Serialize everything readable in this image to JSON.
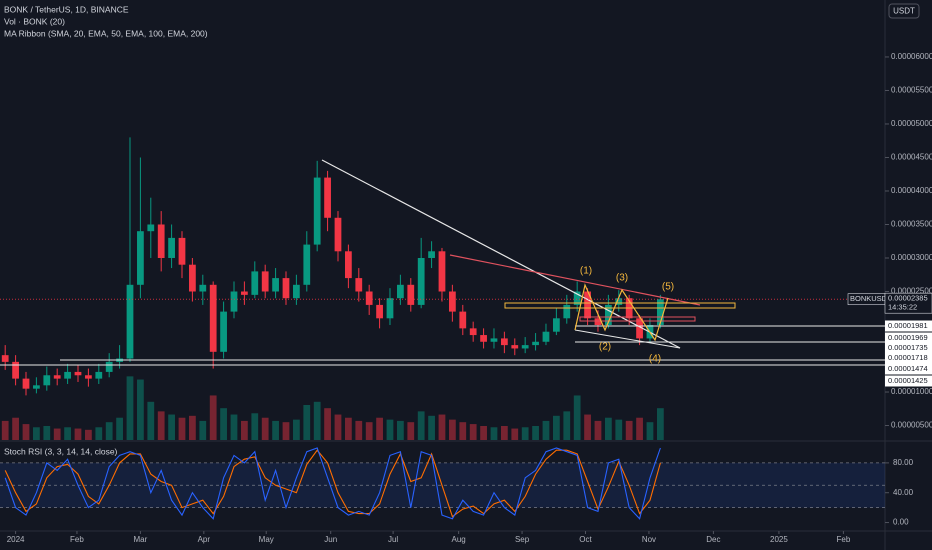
{
  "chart_data": {
    "type": "candlestick",
    "title": "BONK / TetherUS, 1D, BINANCE",
    "indicators": [
      "Vol · BONK (20)",
      "MA Ribbon (SMA, 20, EMA, 50, EMA, 100, EMA, 200)"
    ],
    "currency": "USDT",
    "symbol": "BONKUSDT",
    "last_price": {
      "value": 2.385e-05,
      "label": "0.00002385"
    },
    "countdown": "14:35:22",
    "price_tags": [
      {
        "value": 1.981e-05,
        "label": "0.00001981"
      },
      {
        "value": 1.969e-05,
        "label": "0.00001969"
      },
      {
        "value": 1.735e-05,
        "label": "0.00001735"
      },
      {
        "value": 1.718e-05,
        "label": "0.00001718"
      },
      {
        "value": 1.474e-05,
        "label": "0.00001474"
      },
      {
        "value": 1.425e-05,
        "label": "0.00001425"
      }
    ],
    "waves": [
      "(1)",
      "(2)",
      "(3)",
      "(4)",
      "(5)"
    ],
    "up_color": "#089981",
    "down_color": "#f23645",
    "categories": [
      null,
      null,
      null,
      null,
      null,
      null,
      null,
      null,
      null,
      null,
      null,
      null,
      null,
      null,
      null,
      null,
      null,
      null,
      null,
      null,
      null,
      null,
      null,
      null,
      null,
      null,
      null,
      null,
      null,
      null,
      null,
      null,
      null,
      null,
      null,
      null,
      null,
      null,
      null,
      null,
      null,
      null,
      null,
      null,
      null,
      null,
      null,
      null,
      null,
      null,
      null,
      null,
      null,
      null,
      null,
      null,
      null,
      null,
      null,
      null,
      null,
      null,
      null,
      null
    ],
    "open": [
      1.55e-05,
      1.45e-05,
      1.2e-05,
      1.05e-05,
      1.1e-05,
      1.25e-05,
      1.2e-05,
      1.3e-05,
      1.25e-05,
      1.2e-05,
      1.3e-05,
      1.45e-05,
      1.5e-05,
      2.6e-05,
      3.4e-05,
      3.5e-05,
      3e-05,
      3.3e-05,
      2.9e-05,
      2.5e-05,
      2.6e-05,
      1.6e-05,
      2.2e-05,
      2.5e-05,
      2.45e-05,
      2.8e-05,
      2.5e-05,
      2.7e-05,
      2.4e-05,
      2.6e-05,
      3.2e-05,
      4.2e-05,
      3.6e-05,
      3.1e-05,
      2.7e-05,
      2.5e-05,
      2.3e-05,
      2.1e-05,
      2.4e-05,
      2.6e-05,
      2.3e-05,
      3e-05,
      3.1e-05,
      2.5e-05,
      2.2e-05,
      1.95e-05,
      1.85e-05,
      1.75e-05,
      1.8e-05,
      1.7e-05,
      1.65e-05,
      1.7e-05,
      1.75e-05,
      1.9e-05,
      2.1e-05,
      2.3e-05,
      2.5e-05,
      2.1e-05,
      2e-05,
      2.3e-05,
      2.4e-05,
      2.1e-05,
      1.8e-05,
      2e-05
    ],
    "high": [
      1.7e-05,
      1.55e-05,
      1.3e-05,
      1.22e-05,
      1.38e-05,
      1.35e-05,
      1.42e-05,
      1.4e-05,
      1.35e-05,
      1.42e-05,
      1.58e-05,
      1.7e-05,
      4.8e-05,
      4.5e-05,
      3.9e-05,
      3.7e-05,
      3.5e-05,
      3.4e-05,
      3e-05,
      2.75e-05,
      2.65e-05,
      2.35e-05,
      2.65e-05,
      2.65e-05,
      2.95e-05,
      2.9e-05,
      2.85e-05,
      2.8e-05,
      2.75e-05,
      3.4e-05,
      4.45e-05,
      4.3e-05,
      3.7e-05,
      3.2e-05,
      2.85e-05,
      2.6e-05,
      2.4e-05,
      2.55e-05,
      2.75e-05,
      2.7e-05,
      3.3e-05,
      3.25e-05,
      3.15e-05,
      2.6e-05,
      2.3e-05,
      2.05e-05,
      1.95e-05,
      1.95e-05,
      1.9e-05,
      1.8e-05,
      1.82e-05,
      1.88e-05,
      2.02e-05,
      2.25e-05,
      2.45e-05,
      2.65e-05,
      2.55e-05,
      2.22e-05,
      2.45e-05,
      2.52e-05,
      2.45e-05,
      2.15e-05,
      2.1e-05,
      2.45e-05
    ],
    "low": [
      1.33e-05,
      1.1e-05,
      9.5e-06,
      9.8e-06,
      1.02e-05,
      1.1e-05,
      1.12e-05,
      1.15e-05,
      1.08e-05,
      1.12e-05,
      1.22e-05,
      1.35e-05,
      1.45e-05,
      2.4e-05,
      3e-05,
      2.8e-05,
      2.85e-05,
      2.7e-05,
      2.35e-05,
      2.3e-05,
      1.35e-05,
      1.5e-05,
      2.1e-05,
      2.3e-05,
      2.4e-05,
      2.4e-05,
      2.4e-05,
      2.3e-05,
      2.3e-05,
      2.5e-05,
      3.1e-05,
      3.4e-05,
      2.95e-05,
      2.55e-05,
      2.35e-05,
      2.15e-05,
      1.95e-05,
      2e-05,
      2.3e-05,
      2.2e-05,
      2.25e-05,
      2.85e-05,
      2.35e-05,
      2.05e-05,
      1.85e-05,
      1.75e-05,
      1.65e-05,
      1.65e-05,
      1.58e-05,
      1.55e-05,
      1.58e-05,
      1.62e-05,
      1.7e-05,
      1.85e-05,
      2.02e-05,
      2.2e-05,
      2e-05,
      1.9e-05,
      1.95e-05,
      2.2e-05,
      2e-05,
      1.7e-05,
      1.74e-05,
      1.95e-05
    ],
    "close": [
      1.45e-05,
      1.2e-05,
      1.05e-05,
      1.1e-05,
      1.25e-05,
      1.2e-05,
      1.3e-05,
      1.25e-05,
      1.2e-05,
      1.3e-05,
      1.45e-05,
      1.5e-05,
      2.6e-05,
      3.4e-05,
      3.5e-05,
      3e-05,
      3.3e-05,
      2.9e-05,
      2.5e-05,
      2.6e-05,
      1.6e-05,
      2.2e-05,
      2.5e-05,
      2.45e-05,
      2.8e-05,
      2.5e-05,
      2.7e-05,
      2.4e-05,
      2.6e-05,
      3.2e-05,
      4.2e-05,
      3.6e-05,
      3.1e-05,
      2.7e-05,
      2.5e-05,
      2.3e-05,
      2.1e-05,
      2.4e-05,
      2.6e-05,
      2.3e-05,
      3e-05,
      3.1e-05,
      2.5e-05,
      2.2e-05,
      1.95e-05,
      1.85e-05,
      1.75e-05,
      1.8e-05,
      1.7e-05,
      1.65e-05,
      1.7e-05,
      1.75e-05,
      1.9e-05,
      2.1e-05,
      2.3e-05,
      2.5e-05,
      2.1e-05,
      2e-05,
      2.3e-05,
      2.4e-05,
      2.1e-05,
      1.8e-05,
      2e-05,
      2.385e-05
    ],
    "volume": [
      30,
      35,
      25,
      20,
      22,
      18,
      20,
      18,
      16,
      20,
      28,
      35,
      100,
      95,
      60,
      45,
      40,
      35,
      38,
      30,
      70,
      50,
      40,
      30,
      42,
      35,
      30,
      28,
      32,
      55,
      60,
      50,
      40,
      35,
      30,
      28,
      35,
      32,
      30,
      28,
      45,
      38,
      40,
      32,
      28,
      25,
      22,
      20,
      22,
      18,
      20,
      22,
      30,
      38,
      45,
      70,
      40,
      30,
      35,
      32,
      30,
      35,
      28,
      50
    ],
    "vlim": [
      0,
      110
    ],
    "xlim": [
      -0.5,
      84.6
    ],
    "xticks": [
      {
        "value": 1.0,
        "label": "2024"
      },
      {
        "value": 6.9,
        "label": "Feb"
      },
      {
        "value": 13.0,
        "label": "Mar"
      },
      {
        "value": 19.1,
        "label": "Apr"
      },
      {
        "value": 25.1,
        "label": "May"
      },
      {
        "value": 31.3,
        "label": "Jun"
      },
      {
        "value": 37.3,
        "label": "Jul"
      },
      {
        "value": 43.6,
        "label": "Aug"
      },
      {
        "value": 49.7,
        "label": "Sep"
      },
      {
        "value": 55.8,
        "label": "Oct"
      },
      {
        "value": 61.9,
        "label": "Nov"
      },
      {
        "value": 68.1,
        "label": "Dec"
      },
      {
        "value": 74.4,
        "label": "2025"
      },
      {
        "value": 80.6,
        "label": "Feb"
      }
    ],
    "ylim": [
      2.84e-06,
      6.85e-05
    ],
    "yticks": [
      {
        "value": 6e-05,
        "label": "0.00006000"
      },
      {
        "value": 5.5e-05,
        "label": "0.00005500"
      },
      {
        "value": 5e-05,
        "label": "0.00005000"
      },
      {
        "value": 4.5e-05,
        "label": "0.00004500"
      },
      {
        "value": 4e-05,
        "label": "0.00004000"
      },
      {
        "value": 3.5e-05,
        "label": "0.00003500"
      },
      {
        "value": 3e-05,
        "label": "0.00003000"
      },
      {
        "value": 2.5e-05,
        "label": "0.00002500"
      },
      {
        "value": 1e-05,
        "label": "0.00001000"
      },
      {
        "value": 5e-06,
        "label": "0.00000500"
      }
    ],
    "stoch": {
      "title": "Stoch RSI (3, 3, 14, 14, close)",
      "k_color": "#2962ff",
      "d_color": "#ff6d00",
      "k": [
        60,
        20,
        10,
        40,
        80,
        70,
        85,
        50,
        20,
        30,
        75,
        90,
        95,
        90,
        40,
        70,
        30,
        10,
        40,
        20,
        5,
        60,
        90,
        80,
        95,
        30,
        70,
        20,
        60,
        95,
        100,
        60,
        20,
        10,
        15,
        10,
        40,
        90,
        95,
        20,
        95,
        90,
        10,
        5,
        30,
        15,
        10,
        40,
        20,
        10,
        60,
        70,
        95,
        100,
        95,
        90,
        20,
        15,
        80,
        85,
        20,
        5,
        60,
        100
      ],
      "d": [
        70,
        40,
        15,
        25,
        60,
        75,
        78,
        65,
        35,
        25,
        50,
        80,
        92,
        92,
        65,
        55,
        50,
        20,
        25,
        30,
        12,
        35,
        75,
        85,
        88,
        60,
        50,
        45,
        40,
        78,
        97,
        80,
        40,
        15,
        12,
        12,
        25,
        65,
        92,
        55,
        60,
        92,
        50,
        8,
        18,
        22,
        12,
        25,
        30,
        15,
        35,
        65,
        85,
        97,
        97,
        92,
        55,
        18,
        48,
        82,
        50,
        12,
        30,
        80
      ],
      "ylim": [
        -10,
        104
      ],
      "yticks": [
        {
          "value": 80,
          "label": "80.00"
        },
        {
          "value": 40,
          "label": "40.00"
        },
        {
          "value": 0,
          "label": "0.00"
        }
      ],
      "bands": [
        20,
        50,
        80
      ]
    }
  }
}
